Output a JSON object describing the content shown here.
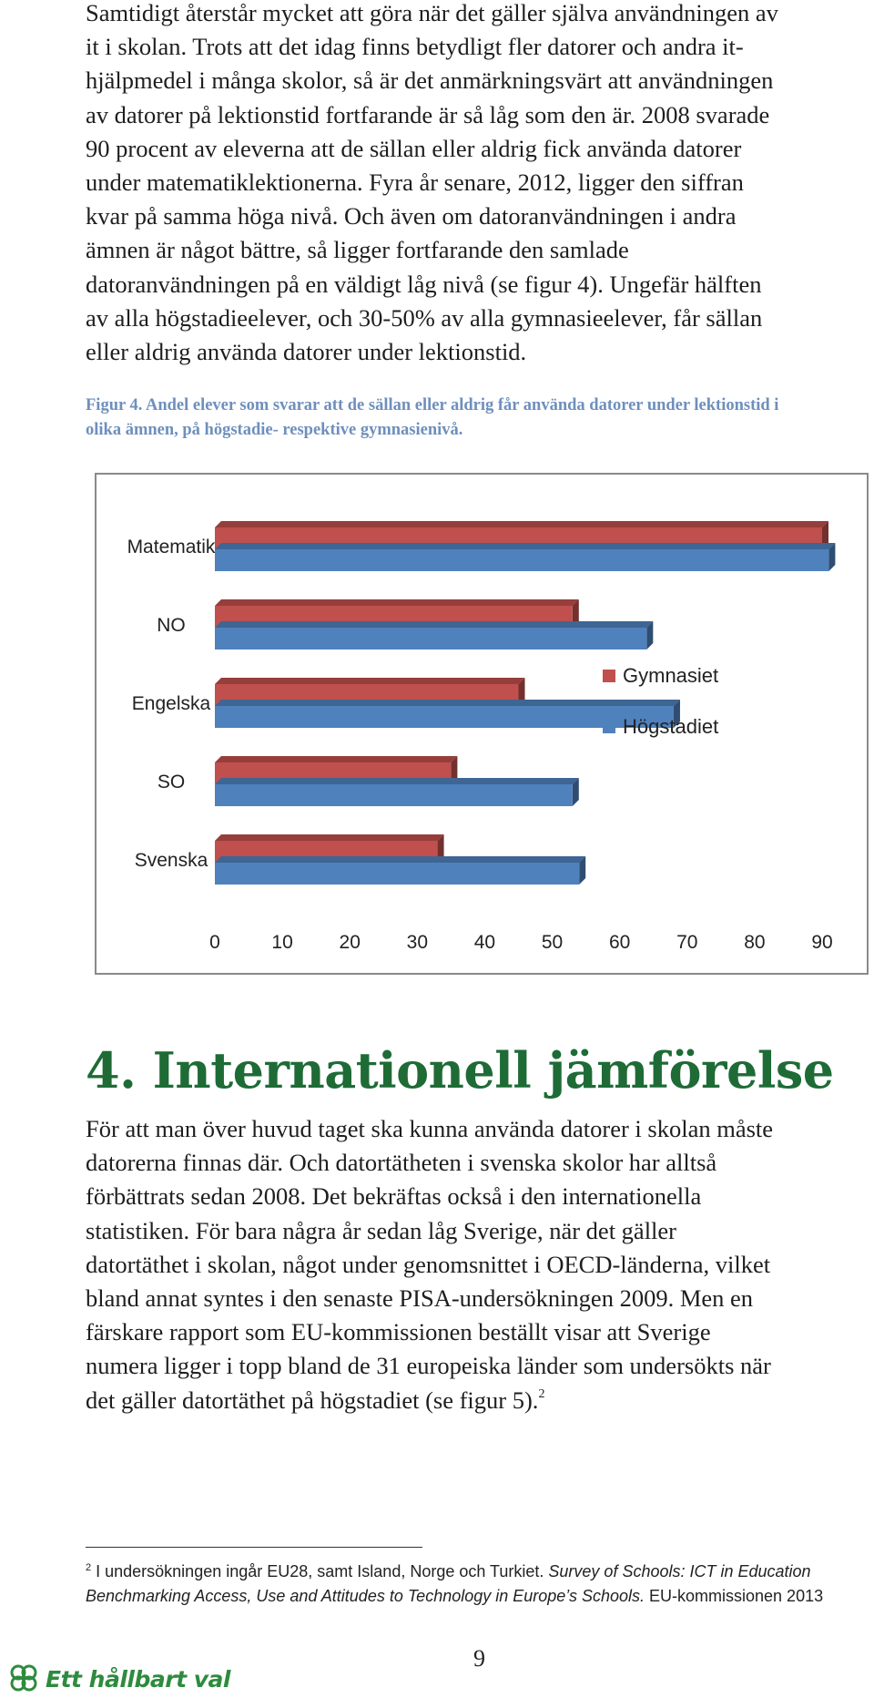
{
  "body_lines_top": [
    "Samtidigt återstår mycket att göra när det gäller själva användningen av",
    "it i skolan. Trots att det idag finns betydligt fler datorer och andra it-",
    "hjälpmedel i många skolor, så är det anmärkningsvärt att användningen",
    "av datorer på lektionstid fortfarande är så låg som den är. 2008 svarade",
    "90 procent av eleverna att de sällan eller aldrig fick använda datorer",
    "under matematiklektionerna. Fyra år senare, 2012, ligger den siffran",
    "kvar på samma höga nivå. Och även om datoranvändningen i andra",
    "ämnen är något bättre, så ligger fortfarande den samlade",
    "datoranvändningen på en väldigt låg nivå (se figur 4). Ungefär hälften",
    "av alla högstadieelever, och 30-50% av alla gymnasieelever, får sällan",
    "eller aldrig använda datorer under lektionstid."
  ],
  "figure_caption": [
    "Figur 4. Andel elever som svarar att de sällan eller aldrig får använda datorer under lektionstid i",
    "olika ämnen, på högstadie- respektive gymnasienivå."
  ],
  "chart_data": {
    "type": "bar",
    "orientation": "horizontal",
    "categories": [
      "Matematik",
      "NO",
      "Engelska",
      "SO",
      "Svenska"
    ],
    "series": [
      {
        "name": "Gymnasiet",
        "values": [
          90,
          53,
          45,
          35,
          33
        ],
        "color": "#c0504d"
      },
      {
        "name": "Högstadiet",
        "values": [
          91,
          64,
          68,
          53,
          54
        ],
        "color": "#4f81bd"
      }
    ],
    "xlim": [
      0,
      90
    ],
    "xticks": [
      0,
      10,
      20,
      30,
      40,
      50,
      60,
      70,
      80,
      90
    ],
    "legend_placement": "right",
    "grid": false,
    "style": "3d"
  },
  "section_heading": "4. Internationell jämförelse",
  "body_lines_bottom": [
    "För att man över huvud taget ska kunna använda datorer i skolan måste",
    "datorerna finnas där. Och datortätheten i svenska skolor har alltså",
    "förbättrats sedan 2008. Det bekräftas också i den internationella",
    "statistiken. För bara några år sedan låg Sverige, när det gäller",
    "datortäthet i skolan, något under genomsnittet i OECD-länderna, vilket",
    "bland annat syntes i den senaste PISA-undersökningen 2009. Men en",
    "färskare rapport som EU-kommissionen beställt visar att Sverige",
    "numera ligger i topp bland de 31 europeiska länder som undersökts när",
    "det gäller datortäthet på högstadiet (se figur 5)."
  ],
  "footnote_ref": "2",
  "footnote": {
    "marker": "2",
    "plain": " I undersökningen ingår EU28, samt Island, Norge och Turkiet. ",
    "italic": "Survey of Schools: ICT in Education Benchmarking Access, Use and Attitudes to Technology in Europe’s Schools.",
    "tail": " EU-kommissionen 2013"
  },
  "page_number": "9",
  "logo_text": "Ett hållbart val",
  "colors": {
    "heading": "#1e6b36",
    "caption": "#6e8fbd",
    "logo": "#2e8b3e"
  }
}
